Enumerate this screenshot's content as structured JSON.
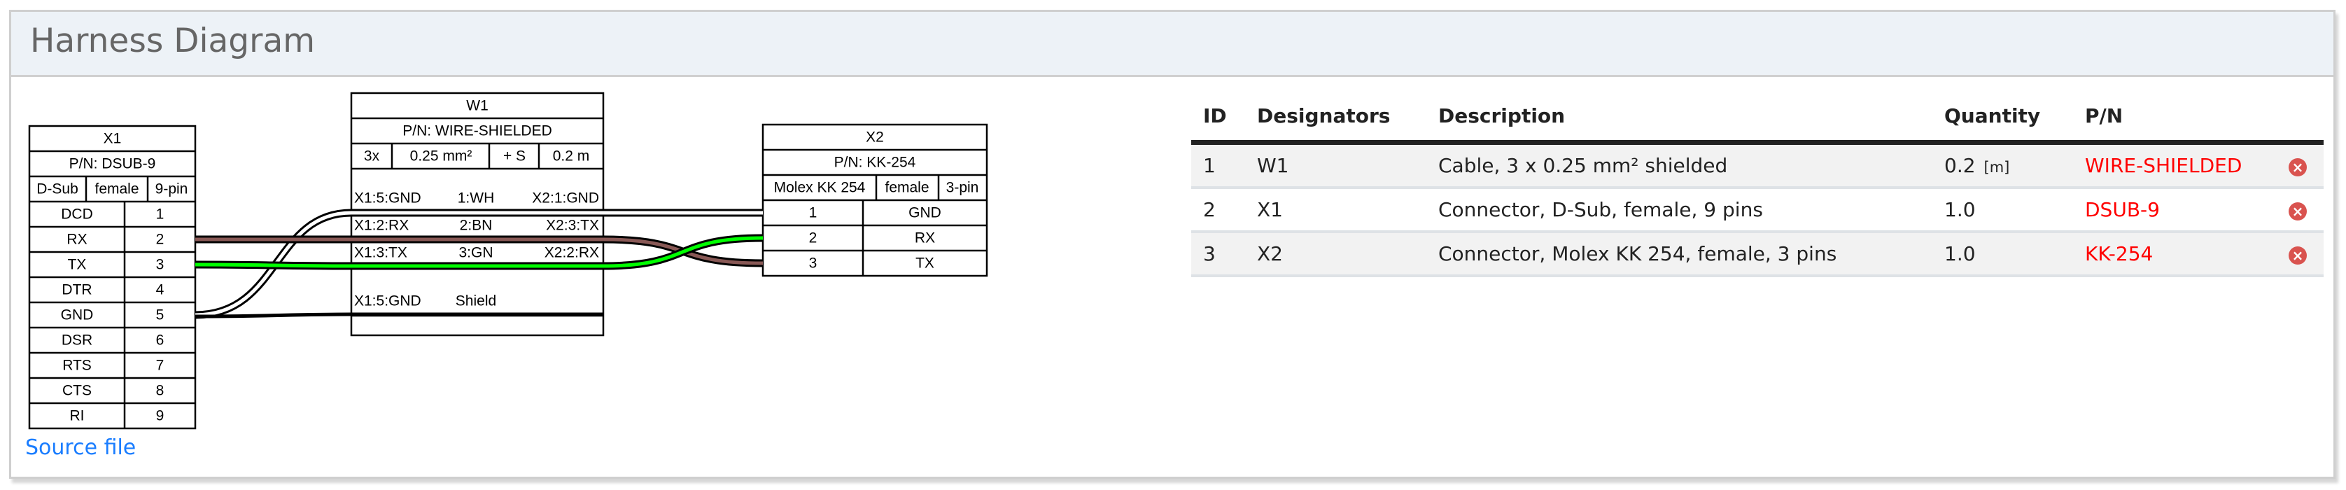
{
  "header": {
    "title": "Harness Diagram"
  },
  "diagram": {
    "connectors": {
      "X1": {
        "name": "X1",
        "pn": "P/N: DSUB-9",
        "type": "D-Sub",
        "gender": "female",
        "pincount": "9-pin",
        "pins": [
          {
            "label": "DCD",
            "pin": "1"
          },
          {
            "label": "RX",
            "pin": "2"
          },
          {
            "label": "TX",
            "pin": "3"
          },
          {
            "label": "DTR",
            "pin": "4"
          },
          {
            "label": "GND",
            "pin": "5"
          },
          {
            "label": "DSR",
            "pin": "6"
          },
          {
            "label": "RTS",
            "pin": "7"
          },
          {
            "label": "CTS",
            "pin": "8"
          },
          {
            "label": "RI",
            "pin": "9"
          }
        ]
      },
      "X2": {
        "name": "X2",
        "pn": "P/N: KK-254",
        "type": "Molex KK 254",
        "gender": "female",
        "pincount": "3-pin",
        "pins": [
          {
            "pin": "1",
            "label": "GND"
          },
          {
            "pin": "2",
            "label": "RX"
          },
          {
            "pin": "3",
            "label": "TX"
          }
        ]
      }
    },
    "cable": {
      "name": "W1",
      "pn": "P/N: WIRE-SHIELDED",
      "count": "3x",
      "gauge": "0.25 mm²",
      "shield": "+ S",
      "length": "0.2 m",
      "wires": [
        {
          "from": "X1:5:GND",
          "id": "1:WH",
          "to": "X2:1:GND",
          "color": "#ffffff"
        },
        {
          "from": "X1:2:RX",
          "id": "2:BN",
          "to": "X2:3:TX",
          "color": "#895956"
        },
        {
          "from": "X1:3:TX",
          "id": "3:GN",
          "to": "X2:2:RX",
          "color": "#00ff00"
        }
      ],
      "shield_row": {
        "from": "X1:5:GND",
        "label": "Shield"
      }
    }
  },
  "source_link": "Source file",
  "bom": {
    "columns": [
      "ID",
      "Designators",
      "Description",
      "Quantity",
      "P/N"
    ],
    "rows": [
      {
        "id": "1",
        "designators": "W1",
        "description": "Cable, 3 x 0.25 mm² shielded",
        "quantity": "0.2",
        "unit": "[m]",
        "pn": "WIRE-SHIELDED"
      },
      {
        "id": "2",
        "designators": "X1",
        "description": "Connector, D-Sub, female, 9 pins",
        "quantity": "1.0",
        "unit": "",
        "pn": "DSUB-9"
      },
      {
        "id": "3",
        "designators": "X2",
        "description": "Connector, Molex KK 254, female, 3 pins",
        "quantity": "1.0",
        "unit": "",
        "pn": "KK-254"
      }
    ]
  },
  "colors": {
    "pn": "#ff0000",
    "link": "#1a7dff",
    "delete_icon": "#d9534f",
    "header_bg": "#edf2f7"
  }
}
